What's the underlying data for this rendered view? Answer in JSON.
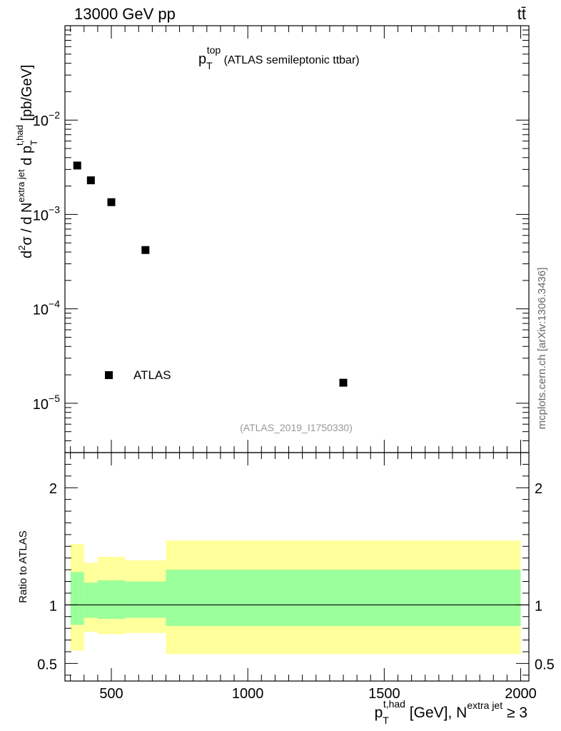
{
  "header": {
    "energy_label": "13000 GeV pp",
    "process_label": "tt̄"
  },
  "side_label": "mcplots.cern.ch [arXiv:1306.3436]",
  "chart_data": [
    {
      "type": "scatter",
      "title": {
        "main": "p",
        "sub": "T",
        "sup": "top",
        "rest": " (ATLAS semileptonic ttbar)"
      },
      "analysis_label": "(ATLAS_2019_I1750330)",
      "ylabel": "d²σ / d N^{extra jet} d p_T^{t,had} [pb/GeV]",
      "yscale": "log",
      "ylim": [
        3e-06,
        0.1
      ],
      "xlim": [
        330,
        2030
      ],
      "y_tick_labels": [
        "10",
        "10",
        "10",
        "10"
      ],
      "y_tick_exponents": [
        "−5",
        "−4",
        "−3",
        "−2"
      ],
      "y_tick_values": [
        1e-05,
        0.0001,
        0.001,
        0.01
      ],
      "series": [
        {
          "name": "ATLAS",
          "marker": "square",
          "color": "#000000",
          "points": [
            {
              "x": 375,
              "y": 0.0033
            },
            {
              "x": 425,
              "y": 0.0023
            },
            {
              "x": 500,
              "y": 0.00135
            },
            {
              "x": 625,
              "y": 0.00042
            },
            {
              "x": 1350,
              "y": 1.65e-05
            }
          ]
        }
      ],
      "legend": {
        "position": "bottom-left",
        "entries": [
          "ATLAS"
        ]
      }
    },
    {
      "type": "area",
      "ylabel": "Ratio to ATLAS",
      "xlabel": "p_T^{t,had} [GeV], N^{extra jet} ≥ 3",
      "ylim": [
        0.35,
        2.3
      ],
      "xlim": [
        330,
        2030
      ],
      "x_ticks": [
        500,
        1000,
        1500,
        2000
      ],
      "x_tick_labels": [
        "500",
        "1000",
        "1500",
        "2000"
      ],
      "y_ticks": [
        0.5,
        1,
        2
      ],
      "y_tick_labels": [
        "0.5",
        "1",
        "2"
      ],
      "reference_line": 1,
      "bins": [
        {
          "x0": 350,
          "x1": 400,
          "inner": [
            0.83,
            1.28
          ],
          "outer": [
            0.61,
            1.52
          ]
        },
        {
          "x0": 400,
          "x1": 450,
          "inner": [
            0.89,
            1.19
          ],
          "outer": [
            0.77,
            1.36
          ]
        },
        {
          "x0": 450,
          "x1": 550,
          "inner": [
            0.88,
            1.21
          ],
          "outer": [
            0.75,
            1.41
          ]
        },
        {
          "x0": 550,
          "x1": 700,
          "inner": [
            0.89,
            1.2
          ],
          "outer": [
            0.76,
            1.38
          ]
        },
        {
          "x0": 700,
          "x1": 2000,
          "inner": [
            0.82,
            1.3
          ],
          "outer": [
            0.58,
            1.55
          ]
        }
      ],
      "colors": {
        "inner": "#9bff9b",
        "outer": "#ffff9b",
        "line": "#000000"
      }
    }
  ]
}
